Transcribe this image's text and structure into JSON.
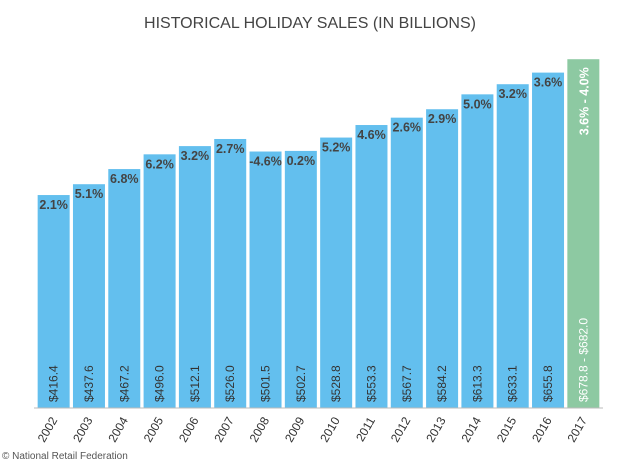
{
  "chart_data": {
    "type": "bar",
    "title": "HISTORICAL HOLIDAY SALES (IN BILLIONS)",
    "categories": [
      "2002",
      "2003",
      "2004",
      "2005",
      "2006",
      "2007",
      "2008",
      "2009",
      "2010",
      "2011",
      "2012",
      "2013",
      "2014",
      "2015",
      "2016"
    ],
    "values": [
      416.4,
      437.6,
      467.2,
      496.0,
      512.1,
      526.0,
      501.5,
      502.7,
      528.8,
      553.3,
      567.7,
      584.2,
      613.3,
      633.1,
      655.8
    ],
    "value_labels": [
      "$416.4",
      "$437.6",
      "$467.2",
      "$496.0",
      "$512.1",
      "$526.0",
      "$501.5",
      "$502.7",
      "$528.8",
      "$553.3",
      "$567.7",
      "$584.2",
      "$613.3",
      "$633.1",
      "$655.8"
    ],
    "growth_labels": [
      "2.1%",
      "5.1%",
      "6.8%",
      "6.2%",
      "3.2%",
      "2.7%",
      "-4.6%",
      "0.2%",
      "5.2%",
      "4.6%",
      "2.6%",
      "2.9%",
      "5.0%",
      "3.2%",
      "3.6%"
    ],
    "color": "#63bfee",
    "forecast": {
      "category": "2017",
      "low": 678.8,
      "high": 682.0,
      "label": "$678.8 - $682.0",
      "growth_label": "3.6% - 4.0%",
      "color": "#8dc9a2"
    },
    "ylim": [
      0,
      700
    ],
    "source": "© National Retail Federation"
  }
}
